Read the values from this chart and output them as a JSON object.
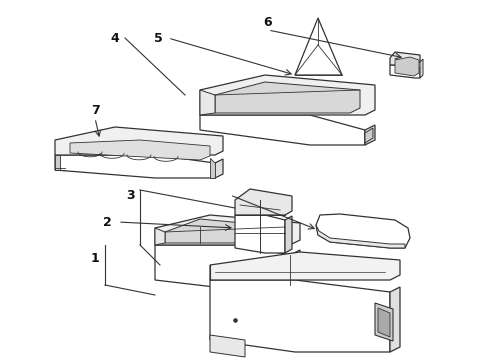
{
  "background_color": "#ffffff",
  "line_color": "#333333",
  "label_color": "#111111",
  "figsize": [
    4.9,
    3.6
  ],
  "dpi": 100,
  "lw": 0.9,
  "label_fontsize": 9
}
